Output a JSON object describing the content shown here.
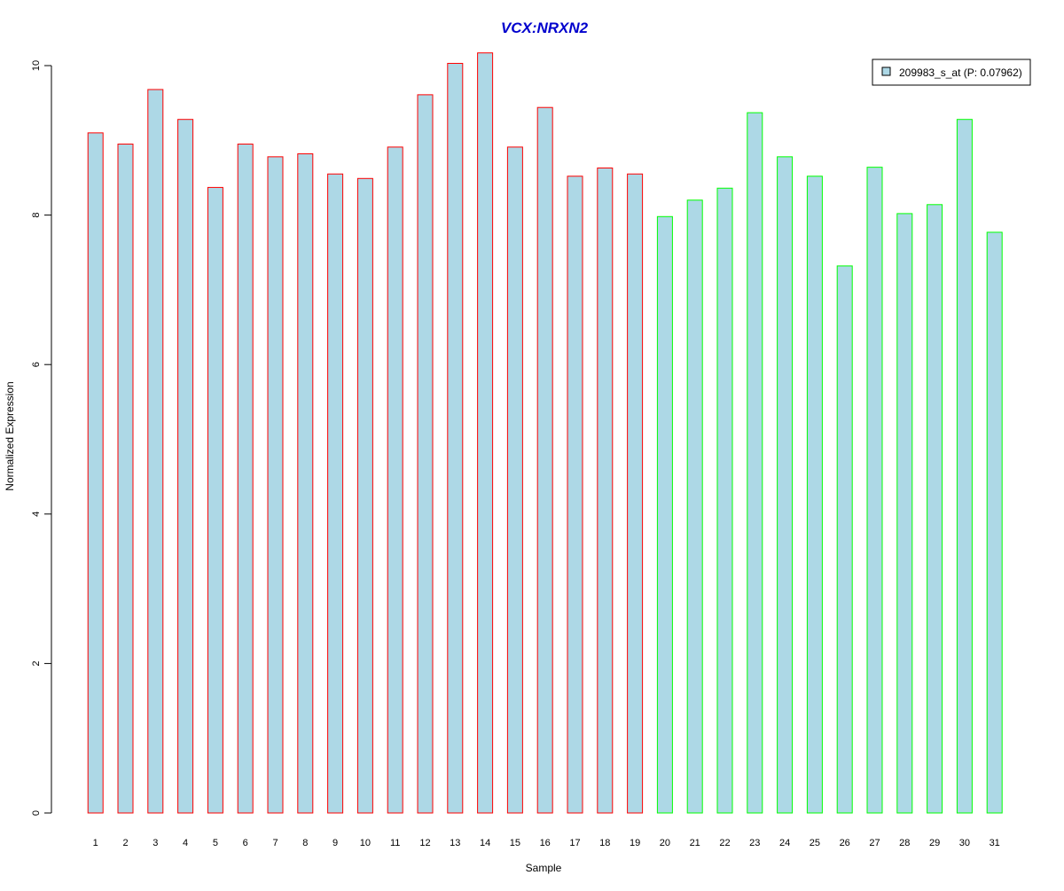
{
  "chart_data": {
    "type": "bar",
    "title": "VCX:NRXN2",
    "xlabel": "Sample",
    "ylabel": "Normalized Expression",
    "ylim": [
      0,
      10.2
    ],
    "yticks": [
      0,
      2,
      4,
      6,
      8,
      10
    ],
    "categories": [
      "1",
      "2",
      "3",
      "4",
      "5",
      "6",
      "7",
      "8",
      "9",
      "10",
      "11",
      "12",
      "13",
      "14",
      "15",
      "16",
      "17",
      "18",
      "19",
      "20",
      "21",
      "22",
      "23",
      "24",
      "25",
      "26",
      "27",
      "28",
      "29",
      "30",
      "31"
    ],
    "series": [
      {
        "name": "209983_s_at (P: 0.07962)",
        "values": [
          9.1,
          8.95,
          9.68,
          9.28,
          8.37,
          8.95,
          8.78,
          8.82,
          8.55,
          8.49,
          8.91,
          9.61,
          10.03,
          10.17,
          8.91,
          9.44,
          8.52,
          8.63,
          8.55,
          7.98,
          8.2,
          8.36,
          9.37,
          8.78,
          8.52,
          7.32,
          8.64,
          8.02,
          8.14,
          9.28,
          7.77
        ]
      }
    ],
    "group_split_after": 19,
    "colors": {
      "bar_fill": "#add8e6",
      "group1_border": "#ff0000",
      "group2_border": "#00ff00",
      "title": "#0000cd"
    },
    "legend_position": "top-right",
    "grid": false
  }
}
